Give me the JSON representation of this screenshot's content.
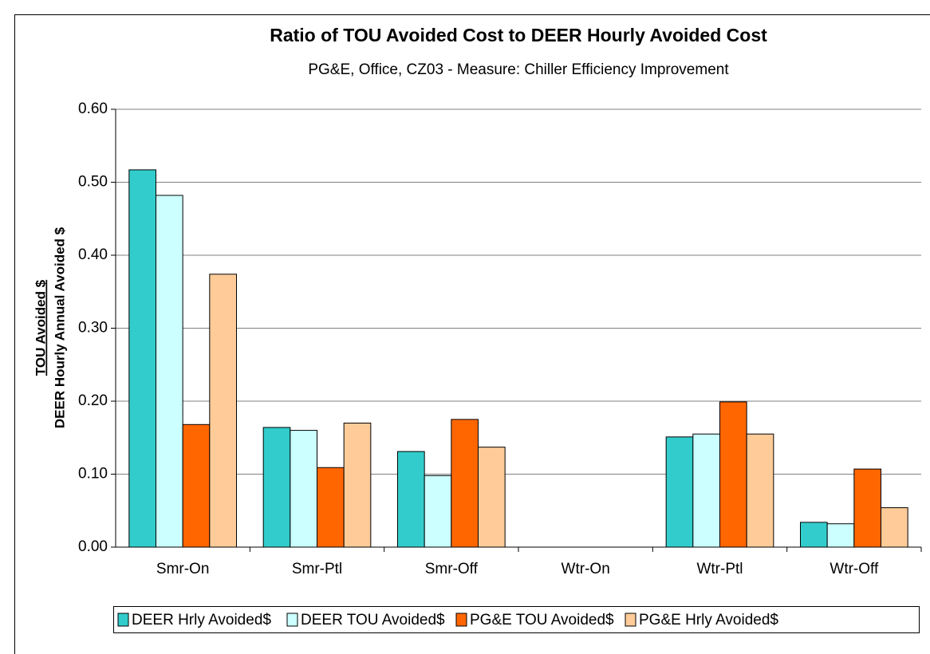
{
  "chart_data": {
    "type": "bar",
    "title": "Ratio of TOU Avoided Cost to DEER Hourly Avoided Cost",
    "subtitle": "PG&E, Office, CZ03 - Measure: Chiller Efficiency Improvement",
    "ylabel_numerator": "TOU Avoided $",
    "ylabel_denominator": "DEER Hourly Annual Avoided $",
    "categories": [
      "Smr-On",
      "Smr-Ptl",
      "Smr-Off",
      "Wtr-On",
      "Wtr-Ptl",
      "Wtr-Off"
    ],
    "series": [
      {
        "name": "DEER Hrly Avoided$",
        "color": "#33cccc",
        "values": [
          0.517,
          0.164,
          0.131,
          0,
          0.151,
          0.034
        ]
      },
      {
        "name": "DEER TOU Avoided$",
        "color": "#ccffff",
        "values": [
          0.482,
          0.16,
          0.098,
          0,
          0.155,
          0.032
        ]
      },
      {
        "name": "PG&E TOU Avoided$",
        "color": "#ff6600",
        "values": [
          0.168,
          0.109,
          0.175,
          0,
          0.199,
          0.107
        ]
      },
      {
        "name": "PG&E Hrly Avoided$",
        "color": "#ffcc99",
        "values": [
          0.374,
          0.17,
          0.137,
          0,
          0.155,
          0.054
        ]
      }
    ],
    "ylim": [
      0,
      0.6
    ],
    "yticks": [
      {
        "value": 0,
        "label": "0.00"
      },
      {
        "value": 0.1,
        "label": "0.10"
      },
      {
        "value": 0.2,
        "label": "0.20"
      },
      {
        "value": 0.3,
        "label": "0.30"
      },
      {
        "value": 0.4,
        "label": "0.40"
      },
      {
        "value": 0.5,
        "label": "0.50"
      },
      {
        "value": 0.6,
        "label": "0.60"
      }
    ],
    "grid": true,
    "legend": "bottom"
  }
}
